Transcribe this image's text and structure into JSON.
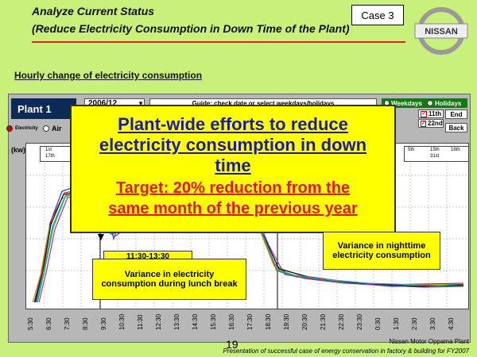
{
  "header": {
    "title_line1": "Analyze Current Status",
    "title_line2": "(Reduce Electricity Consumption in Down Time of the Plant)",
    "case_label": "Case 3",
    "logo_text": "NISSAN",
    "accent_color": "#d22222"
  },
  "subtitle": "Hourly change of electricity consumption",
  "app": {
    "plant_label": "Plant 1",
    "date_value": "2006/12",
    "guide_text": "Guide: check date or select weekdays/holidays",
    "tab_weekdays": "Weekdays",
    "tab_holidays": "Holidays",
    "day_a": "11th",
    "day_b": "22nd",
    "btn_end": "End",
    "btn_back": "Back",
    "radio_electricity": "Electricity",
    "radio_air": "Air",
    "unit_label": "(kw)",
    "legend_left": [
      "1st",
      "17th"
    ],
    "legend_right": [
      "5th",
      "15th",
      "16th",
      "31st"
    ],
    "time_ticks": [
      "5:30",
      "6:30",
      "7:30",
      "8:30",
      "9:30",
      "10:30",
      "11:30",
      "12:30",
      "13:30",
      "14:30",
      "15:30",
      "16:30",
      "17:30",
      "18:30",
      "19:30",
      "20:30",
      "21:30",
      "22:30",
      "23:30",
      "0:30",
      "1:30",
      "2:30",
      "3:30",
      "4:30"
    ]
  },
  "callouts": {
    "main_line1": "Plant-wide efforts to reduce",
    "main_line2": "electricity consumption in down",
    "main_line3": "time",
    "main_line4": "Target: 20% reduction from the",
    "main_line5": "same month of the previous year",
    "lunch_time": "11:30-13:30",
    "lunch": "Variance in electricity consumption during lunch break",
    "night": "Variance in nighttime electricity consumption"
  },
  "footer": {
    "page": "19",
    "plant_name": "Nissan Motor Oppama Plant",
    "presentation": "Presentation of successful case of energy conservation in factory & building for FY2007"
  }
}
